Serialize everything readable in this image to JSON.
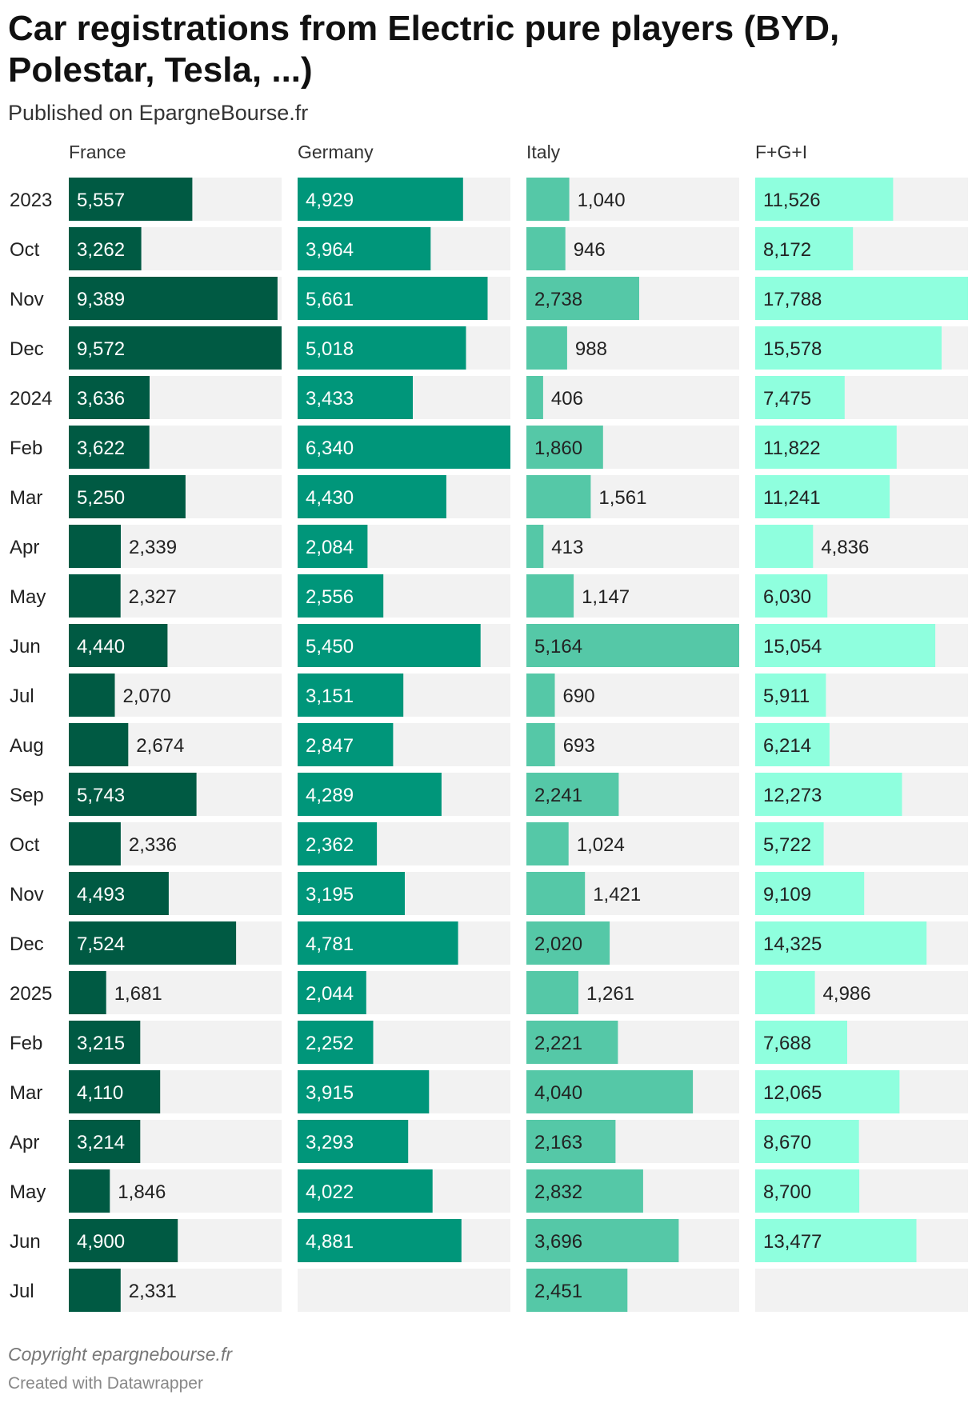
{
  "chart_data": {
    "type": "bar",
    "title": "Car registrations from Electric pure players (BYD, Polestar, Tesla, ...)",
    "subtitle": "Published on EpargneBourse.fr",
    "categories": [
      "2023",
      "Oct",
      "Nov",
      "Dec",
      "2024",
      "Feb",
      "Mar",
      "Apr",
      "May",
      "Jun",
      "Jul",
      "Aug",
      "Sep",
      "Oct",
      "Nov",
      "Dec",
      "2025",
      "Feb",
      "Mar",
      "Apr",
      "May",
      "Jun",
      "Jul"
    ],
    "series": [
      {
        "name": "France",
        "color": "#005a43",
        "values": [
          5557,
          3262,
          9389,
          9572,
          3636,
          3622,
          5250,
          2339,
          2327,
          4440,
          2070,
          2674,
          5743,
          2336,
          4493,
          7524,
          1681,
          3215,
          4110,
          3214,
          1846,
          4900,
          2331
        ]
      },
      {
        "name": "Germany",
        "color": "#00967a",
        "values": [
          4929,
          3964,
          5661,
          5018,
          3433,
          6340,
          4430,
          2084,
          2556,
          5450,
          3151,
          2847,
          4289,
          2362,
          3195,
          4781,
          2044,
          2252,
          3915,
          3293,
          4022,
          4881,
          null
        ]
      },
      {
        "name": "Italy",
        "color": "#55c8a7",
        "values": [
          1040,
          946,
          2738,
          988,
          406,
          1860,
          1561,
          413,
          1147,
          5164,
          690,
          693,
          2241,
          1024,
          1421,
          2020,
          1261,
          2221,
          4040,
          2163,
          2832,
          3696,
          2451
        ]
      },
      {
        "name": "F+G+I",
        "color": "#8fffde",
        "values": [
          11526,
          8172,
          17788,
          15578,
          7475,
          11822,
          11241,
          4836,
          6030,
          15054,
          5911,
          6214,
          12273,
          5722,
          9109,
          14325,
          4986,
          7688,
          12065,
          8670,
          8700,
          13477,
          null
        ]
      }
    ],
    "notes": "Copyright epargnebourse.fr",
    "byline": "Created with Datawrapper"
  }
}
